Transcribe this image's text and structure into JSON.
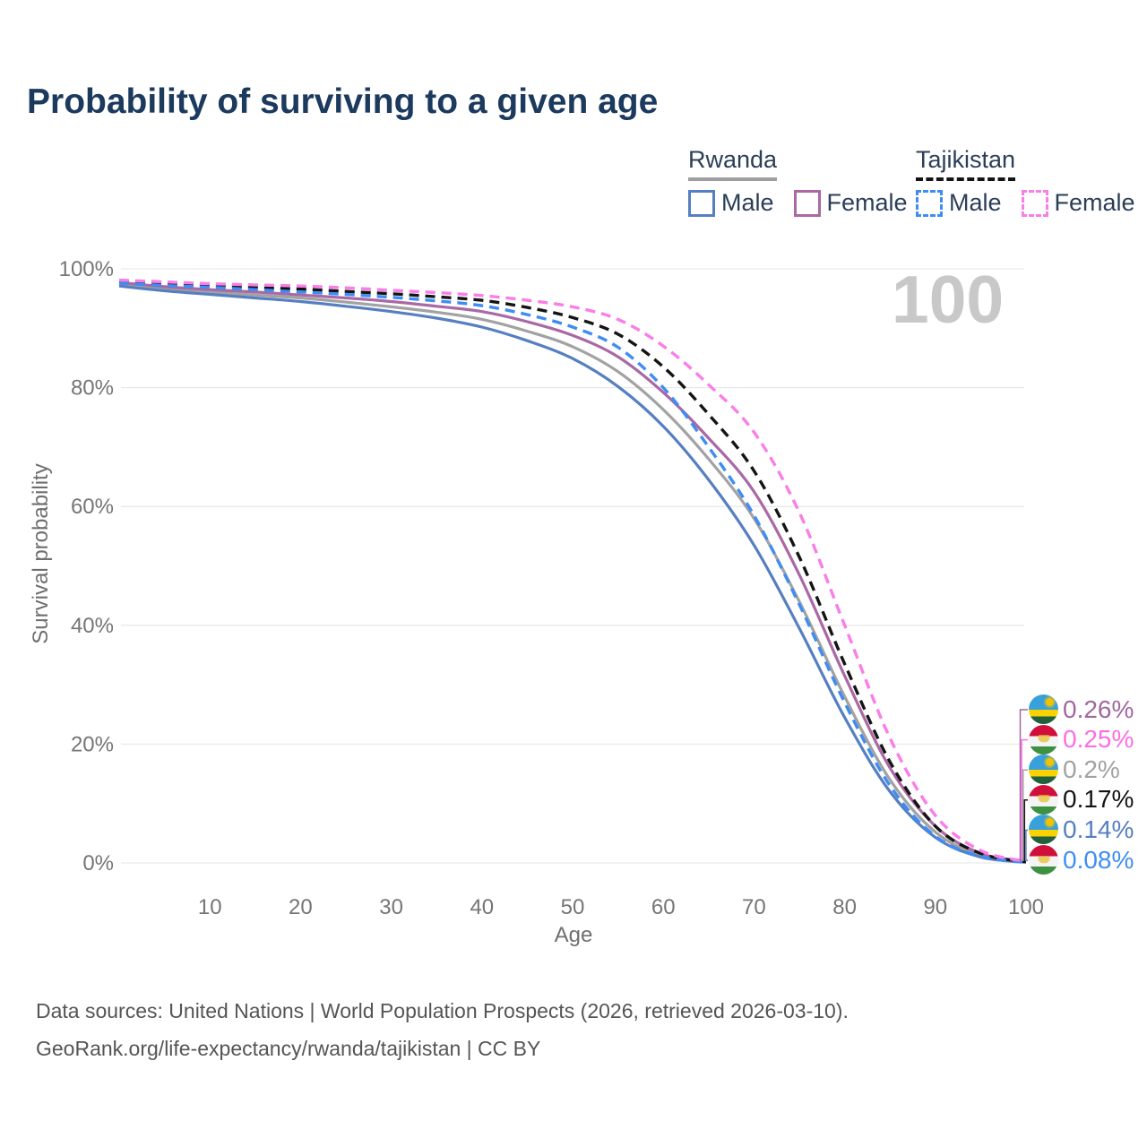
{
  "title": "Probability of surviving to a given age",
  "watermark": "100",
  "legend": {
    "groups": [
      {
        "country": "Rwanda",
        "style": "solid",
        "underline_color": "#9e9e9e",
        "items": [
          {
            "label": "Male",
            "color": "#567fc1",
            "dashed": false
          },
          {
            "label": "Female",
            "color": "#aa68a5",
            "dashed": false
          }
        ]
      },
      {
        "country": "Tajikistan",
        "style": "dashed",
        "underline_color": "#141414",
        "items": [
          {
            "label": "Male",
            "color": "#3f8df4",
            "dashed": true
          },
          {
            "label": "Female",
            "color": "#fa7de8",
            "dashed": true
          }
        ]
      }
    ]
  },
  "chart_data": {
    "type": "line",
    "title": "Probability of surviving to a given age",
    "xlabel": "Age",
    "ylabel": "Survival probability",
    "xlim": [
      0,
      100
    ],
    "ylim": [
      0,
      100
    ],
    "grid": "horizontal",
    "x_tick_values": [
      10,
      20,
      30,
      40,
      50,
      60,
      70,
      80,
      90,
      100
    ],
    "y_grid_values": [
      0,
      20,
      40,
      60,
      80,
      100
    ],
    "y_tick_labels": [
      "0%",
      "20%",
      "40%",
      "60%",
      "80%",
      "100%"
    ],
    "x": [
      0,
      5,
      10,
      15,
      20,
      25,
      30,
      35,
      40,
      45,
      50,
      55,
      60,
      65,
      70,
      75,
      80,
      85,
      90,
      95,
      100
    ],
    "series": [
      {
        "name": "Rwanda Both sexes",
        "color": "#a2a2a2",
        "dash": false,
        "values": [
          97.4,
          96.6,
          96.1,
          95.6,
          95.1,
          94.4,
          93.6,
          92.7,
          91.5,
          89.5,
          86.9,
          82.7,
          76.3,
          68.0,
          58.0,
          44.0,
          28.0,
          14.0,
          5.2,
          1.3,
          0.2
        ]
      },
      {
        "name": "Rwanda Female",
        "color": "#aa68a5",
        "dash": false,
        "values": [
          97.7,
          97.0,
          96.5,
          96.1,
          95.6,
          95.1,
          94.5,
          93.7,
          92.8,
          91.1,
          88.8,
          85.2,
          79.2,
          71.5,
          62.5,
          48.5,
          31.5,
          16.0,
          6.2,
          1.6,
          0.26
        ]
      },
      {
        "name": "Rwanda Male",
        "color": "#567fc1",
        "dash": false,
        "values": [
          97.1,
          96.3,
          95.7,
          95.1,
          94.5,
          93.7,
          92.8,
          91.7,
          90.2,
          87.9,
          84.9,
          80.2,
          73.5,
          64.5,
          53.5,
          39.5,
          24.5,
          12.0,
          4.3,
          1.0,
          0.14
        ]
      },
      {
        "name": "Tajikistan Both sexes",
        "color": "#141414",
        "dash": true,
        "values": [
          97.9,
          97.5,
          97.2,
          96.9,
          96.6,
          96.2,
          95.8,
          95.3,
          94.7,
          93.5,
          91.8,
          89.0,
          83.5,
          75.5,
          66.0,
          51.5,
          33.5,
          17.0,
          6.2,
          1.6,
          0.17
        ]
      },
      {
        "name": "Tajikistan Male",
        "color": "#3f8df4",
        "dash": true,
        "values": [
          97.6,
          97.2,
          96.9,
          96.5,
          96.1,
          95.7,
          95.2,
          94.6,
          93.8,
          92.3,
          90.2,
          86.8,
          80.0,
          70.0,
          58.5,
          43.5,
          27.0,
          13.0,
          4.5,
          1.1,
          0.08
        ]
      },
      {
        "name": "Tajikistan Female",
        "color": "#fa7de8",
        "dash": true,
        "values": [
          98.1,
          97.8,
          97.5,
          97.3,
          97.1,
          96.8,
          96.4,
          96.0,
          95.5,
          94.7,
          93.6,
          91.5,
          87.0,
          80.5,
          72.5,
          59.0,
          40.0,
          21.0,
          8.0,
          2.1,
          0.25
        ]
      }
    ],
    "end_labels": [
      {
        "text": "0.26%",
        "series": "Rwanda Female",
        "country": "rwanda",
        "color": "#a1689f"
      },
      {
        "text": "0.25%",
        "series": "Tajikistan Female",
        "country": "tajikistan",
        "color": "#fa6ee4"
      },
      {
        "text": "0.2%",
        "series": "Rwanda Both sexes",
        "country": "rwanda",
        "color": "#a2a2a2"
      },
      {
        "text": "0.17%",
        "series": "Tajikistan Both sexes",
        "country": "tajikistan",
        "color": "#141414"
      },
      {
        "text": "0.14%",
        "series": "Rwanda Male",
        "country": "rwanda",
        "color": "#567fc1"
      },
      {
        "text": "0.08%",
        "series": "Tajikistan Male",
        "country": "tajikistan",
        "color": "#3f8df4"
      }
    ],
    "flag_colors": {
      "rwanda": {
        "top": "#38a0db",
        "middle": "#fad201",
        "bottom": "#20603d"
      },
      "tajikistan": {
        "top": "#d0103a",
        "middle": "#f4f4f4",
        "bottom": "#3e9140"
      }
    }
  },
  "footer": {
    "line1": "Data sources: United Nations | World Population Prospects (2026, retrieved 2026-03-10).",
    "line2": "GeoRank.org/life-expectancy/rwanda/tajikistan | CC BY"
  }
}
